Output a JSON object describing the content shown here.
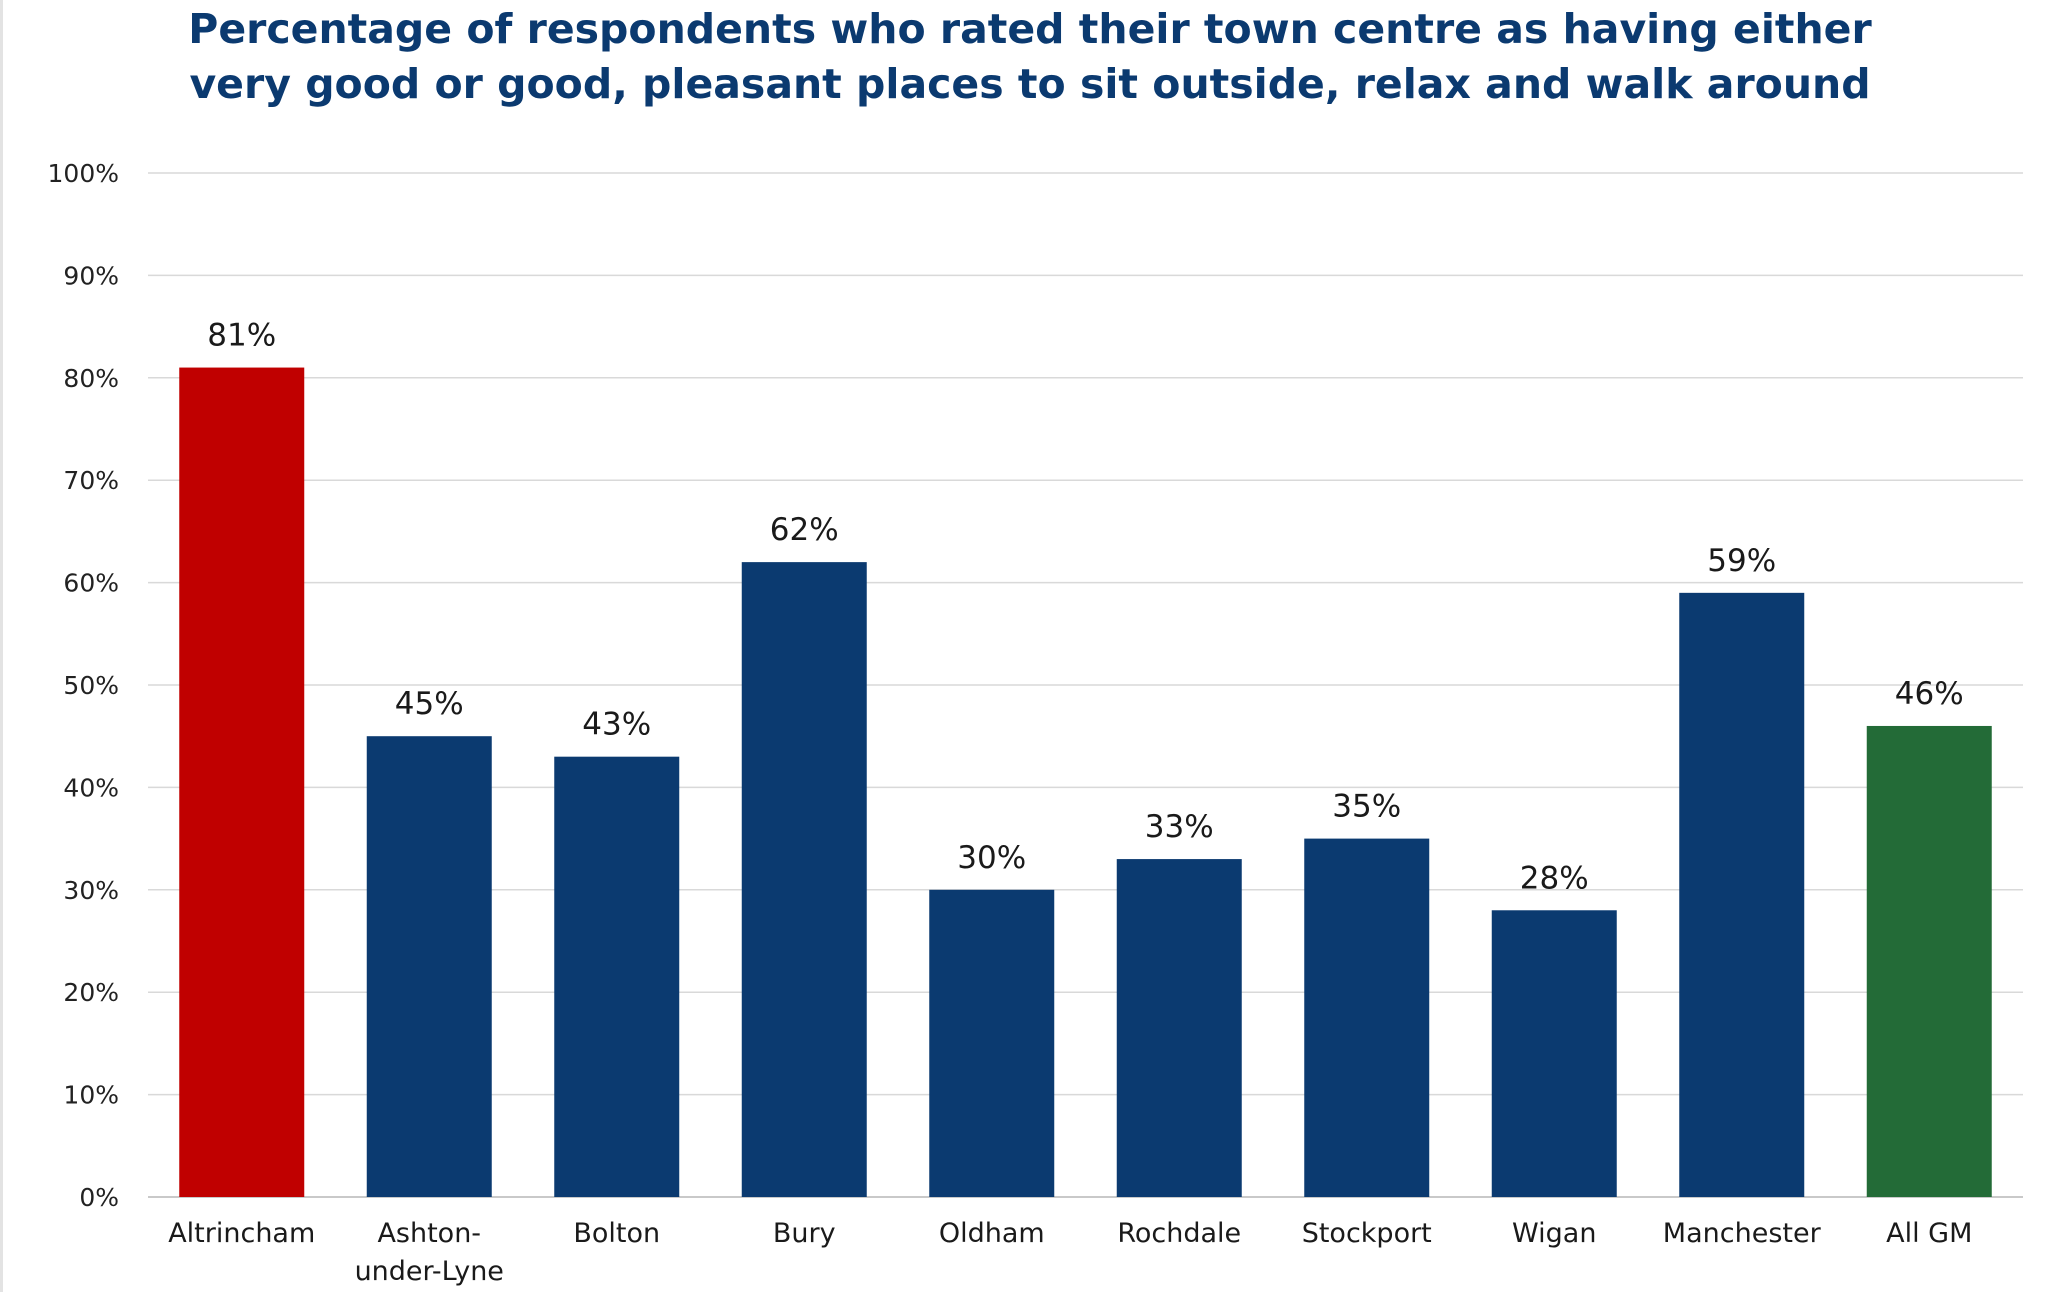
{
  "chart_data": {
    "type": "bar",
    "title": "Percentage of respondents who rated their town centre as having either very good or good, pleasant places to sit outside, relax and walk around",
    "xlabel": "",
    "ylabel": "",
    "ylim": [
      0,
      100
    ],
    "yticks": [
      0,
      10,
      20,
      30,
      40,
      50,
      60,
      70,
      80,
      90,
      100
    ],
    "ytick_labels": [
      "0%",
      "10%",
      "20%",
      "30%",
      "40%",
      "50%",
      "60%",
      "70%",
      "80%",
      "90%",
      "100%"
    ],
    "grid": true,
    "categories": [
      "Altrincham",
      "Ashton-under-Lyne",
      "Bolton",
      "Bury",
      "Oldham",
      "Rochdale",
      "Stockport",
      "Wigan",
      "Manchester",
      "All GM"
    ],
    "category_lines": [
      [
        "Altrincham"
      ],
      [
        "Ashton-",
        "under-Lyne"
      ],
      [
        "Bolton"
      ],
      [
        "Bury"
      ],
      [
        "Oldham"
      ],
      [
        "Rochdale"
      ],
      [
        "Stockport"
      ],
      [
        "Wigan"
      ],
      [
        "Manchester"
      ],
      [
        "All GM"
      ]
    ],
    "values": [
      81,
      45,
      43,
      62,
      30,
      33,
      35,
      28,
      59,
      46
    ],
    "data_labels": [
      "81%",
      "45%",
      "43%",
      "62%",
      "30%",
      "33%",
      "35%",
      "28%",
      "59%",
      "46%"
    ],
    "colors": [
      "#c00000",
      "#0b3a70",
      "#0b3a70",
      "#0b3a70",
      "#0b3a70",
      "#0b3a70",
      "#0b3a70",
      "#0b3a70",
      "#0b3a70",
      "#236b37"
    ]
  }
}
